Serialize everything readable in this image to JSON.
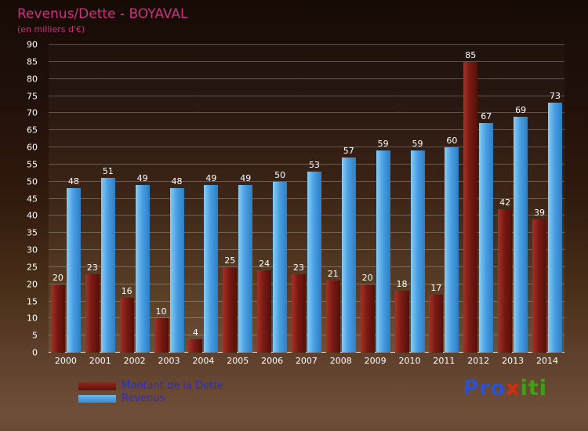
{
  "title": "Revenus/Dette - BOYAVAL",
  "subtitle": "(en milliers d'€)",
  "chart_data": {
    "type": "bar",
    "title": "Revenus/Dette - BOYAVAL",
    "subtitle": "(en milliers d'€)",
    "categories": [
      "2000",
      "2001",
      "2002",
      "2003",
      "2004",
      "2005",
      "2006",
      "2007",
      "2008",
      "2009",
      "2010",
      "2011",
      "2012",
      "2013",
      "2014"
    ],
    "series": [
      {
        "name": "Montant de la Dette",
        "color": "#7a1a14",
        "values": [
          20,
          23,
          16,
          10,
          4,
          25,
          24,
          23,
          21,
          20,
          18,
          17,
          85,
          42,
          39
        ]
      },
      {
        "name": "Revenus",
        "color": "#4aa0e4",
        "values": [
          48,
          51,
          49,
          48,
          49,
          49,
          50,
          53,
          57,
          59,
          59,
          60,
          67,
          69,
          73
        ]
      }
    ],
    "ylim": [
      0,
      90
    ],
    "ytick_step": 5,
    "grid": true,
    "value_labels": true,
    "legend_position": "bottom-left"
  },
  "colors": {
    "title_text": "#c9307e",
    "axis_text": "#ffffff",
    "legend_text": "#2b2bd0",
    "bar_dette": "#7a1a14",
    "bar_revenus": "#4aa0e4",
    "background_top": "#170b05",
    "background_bottom": "#6f4f38"
  },
  "logo": {
    "name": "Proxiti",
    "parts": [
      {
        "text": "Pro",
        "color": "#2a52d2"
      },
      {
        "text": "x",
        "color": "#d62c10"
      },
      {
        "text": "iti",
        "color": "#3fa018"
      }
    ]
  }
}
